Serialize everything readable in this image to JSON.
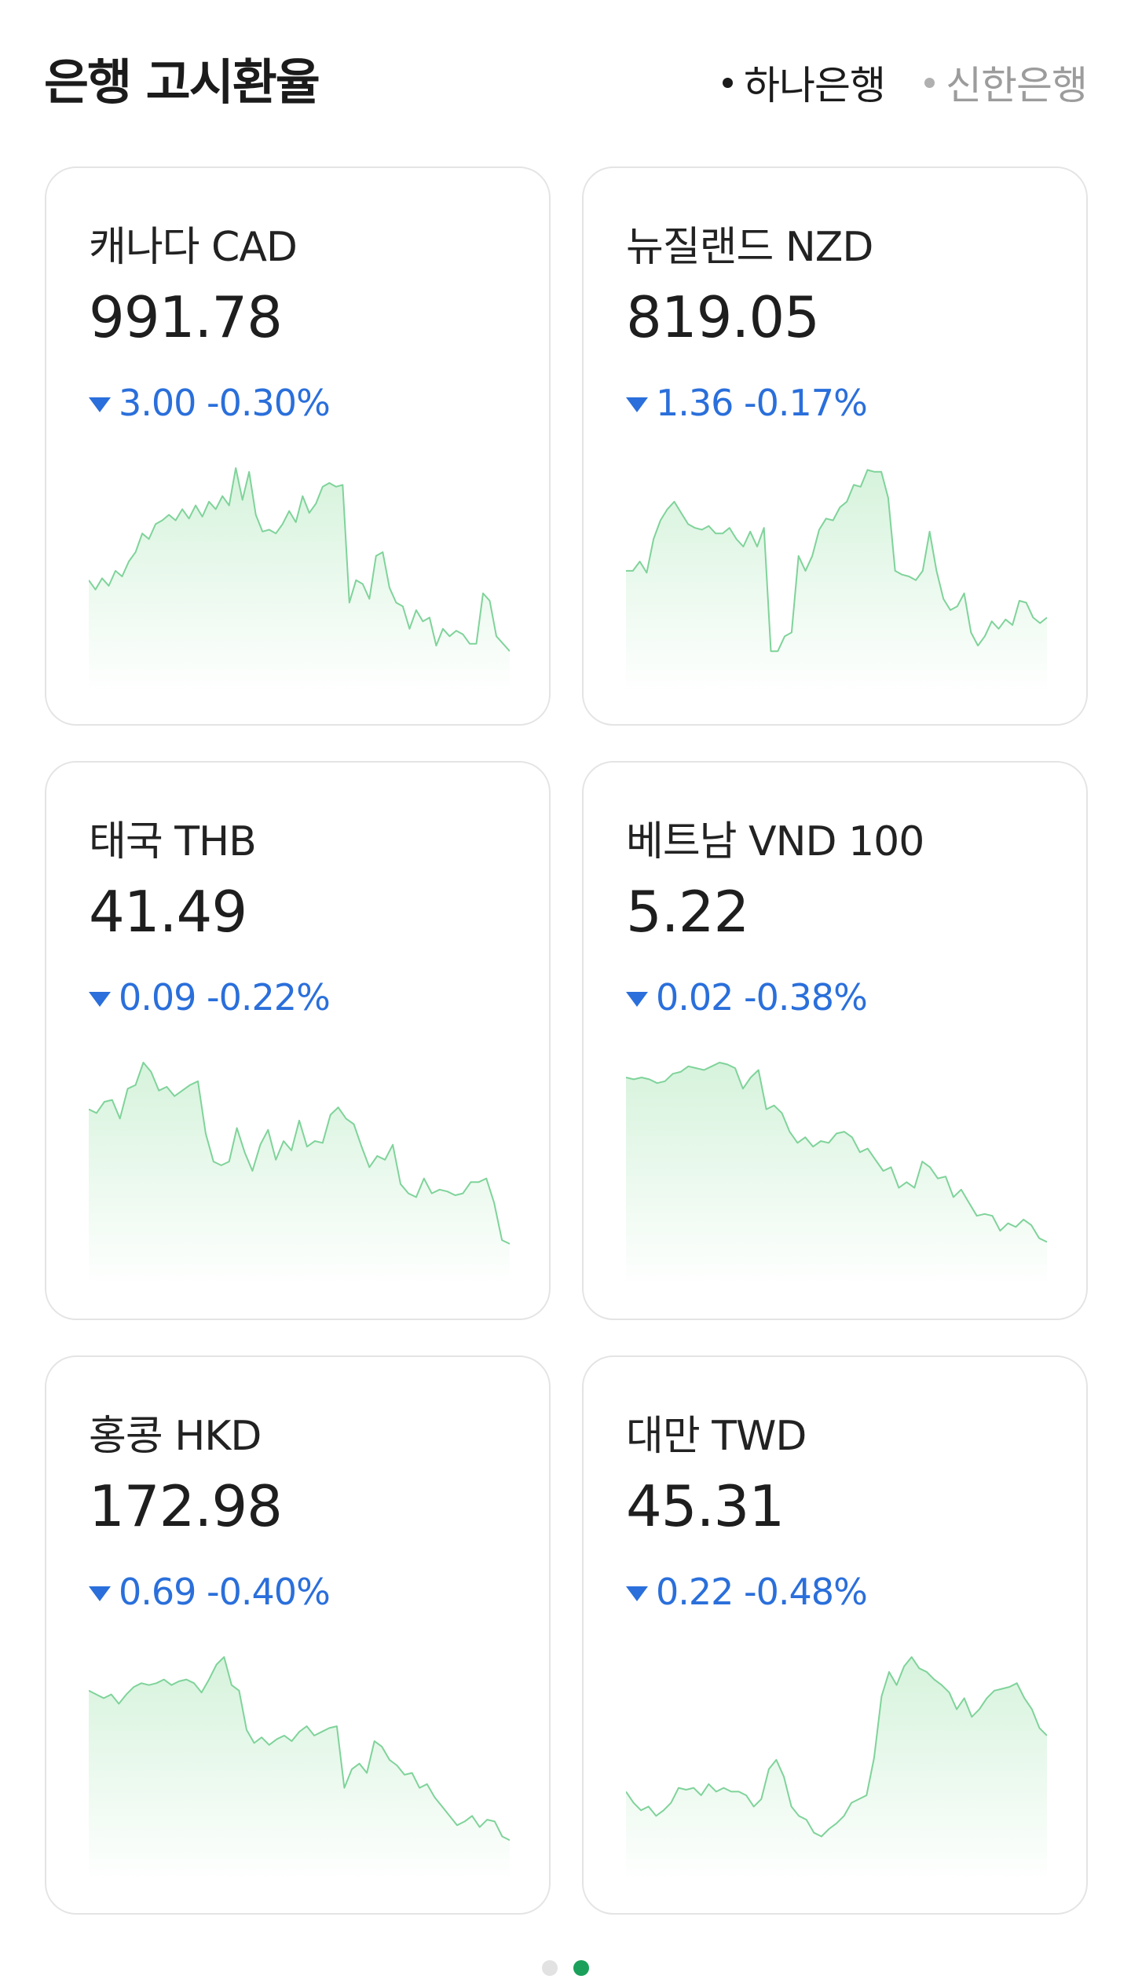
{
  "title": "은행 고시환율",
  "banks": [
    {
      "label": "하나은행",
      "active": true
    },
    {
      "label": "신한은행",
      "active": false
    }
  ],
  "colors": {
    "down": "#2a6fdb",
    "line": "#7fd39a",
    "fill_top": "#d6f3dc",
    "pager_active": "#1aa05a"
  },
  "cards": [
    {
      "name": "캐나다 CAD",
      "rate": "991.78",
      "change": "3.00 -0.30%",
      "direction": "down",
      "series": [
        0.4,
        0.35,
        0.41,
        0.37,
        0.45,
        0.42,
        0.5,
        0.55,
        0.65,
        0.62,
        0.7,
        0.72,
        0.75,
        0.72,
        0.78,
        0.73,
        0.8,
        0.74,
        0.82,
        0.78,
        0.85,
        0.8,
        1.0,
        0.83,
        0.98,
        0.75,
        0.66,
        0.67,
        0.65,
        0.7,
        0.77,
        0.71,
        0.85,
        0.76,
        0.81,
        0.9,
        0.92,
        0.9,
        0.91,
        0.28,
        0.4,
        0.38,
        0.3,
        0.53,
        0.55,
        0.36,
        0.28,
        0.26,
        0.14,
        0.24,
        0.18,
        0.2,
        0.05,
        0.14,
        0.1,
        0.13,
        0.11,
        0.06,
        0.06,
        0.33,
        0.29,
        0.1,
        0.06,
        0.02
      ]
    },
    {
      "name": "뉴질랜드 NZD",
      "rate": "819.05",
      "change": "1.36 -0.17%",
      "direction": "down",
      "series": [
        0.45,
        0.45,
        0.5,
        0.44,
        0.62,
        0.72,
        0.78,
        0.82,
        0.76,
        0.7,
        0.68,
        0.67,
        0.69,
        0.65,
        0.65,
        0.68,
        0.62,
        0.58,
        0.66,
        0.58,
        0.68,
        0.02,
        0.02,
        0.1,
        0.12,
        0.53,
        0.45,
        0.53,
        0.67,
        0.73,
        0.72,
        0.79,
        0.82,
        0.91,
        0.9,
        0.99,
        0.98,
        0.98,
        0.84,
        0.45,
        0.43,
        0.42,
        0.4,
        0.45,
        0.66,
        0.45,
        0.3,
        0.24,
        0.26,
        0.33,
        0.12,
        0.05,
        0.1,
        0.18,
        0.14,
        0.19,
        0.16,
        0.29,
        0.28,
        0.2,
        0.17,
        0.2
      ]
    },
    {
      "name": "태국 THB",
      "rate": "41.49",
      "change": "0.09 -0.22%",
      "direction": "down",
      "series": [
        0.75,
        0.73,
        0.79,
        0.8,
        0.7,
        0.86,
        0.88,
        1.0,
        0.95,
        0.85,
        0.87,
        0.82,
        0.85,
        0.88,
        0.9,
        0.62,
        0.47,
        0.45,
        0.47,
        0.65,
        0.52,
        0.42,
        0.56,
        0.64,
        0.48,
        0.58,
        0.53,
        0.69,
        0.55,
        0.58,
        0.57,
        0.72,
        0.76,
        0.7,
        0.67,
        0.55,
        0.44,
        0.5,
        0.48,
        0.56,
        0.35,
        0.3,
        0.28,
        0.38,
        0.3,
        0.32,
        0.31,
        0.29,
        0.3,
        0.36,
        0.36,
        0.38,
        0.25,
        0.05,
        0.03
      ]
    },
    {
      "name": "베트남 VND 100",
      "rate": "5.22",
      "change": "0.02 -0.38%",
      "direction": "down",
      "series": [
        0.92,
        0.91,
        0.92,
        0.91,
        0.89,
        0.9,
        0.94,
        0.95,
        0.98,
        0.97,
        0.96,
        0.98,
        1.0,
        0.99,
        0.97,
        0.86,
        0.92,
        0.96,
        0.75,
        0.77,
        0.73,
        0.63,
        0.57,
        0.6,
        0.55,
        0.58,
        0.57,
        0.62,
        0.63,
        0.6,
        0.52,
        0.54,
        0.48,
        0.42,
        0.44,
        0.33,
        0.36,
        0.33,
        0.47,
        0.44,
        0.38,
        0.39,
        0.28,
        0.32,
        0.25,
        0.18,
        0.19,
        0.18,
        0.1,
        0.14,
        0.12,
        0.16,
        0.13,
        0.06,
        0.04
      ]
    },
    {
      "name": "홍콩 HKD",
      "rate": "172.98",
      "change": "0.69 -0.40%",
      "direction": "down",
      "series": [
        0.82,
        0.8,
        0.78,
        0.8,
        0.75,
        0.8,
        0.84,
        0.86,
        0.85,
        0.86,
        0.88,
        0.85,
        0.87,
        0.88,
        0.86,
        0.81,
        0.88,
        0.96,
        1.0,
        0.85,
        0.82,
        0.61,
        0.54,
        0.57,
        0.53,
        0.56,
        0.58,
        0.55,
        0.6,
        0.63,
        0.58,
        0.6,
        0.62,
        0.63,
        0.3,
        0.4,
        0.43,
        0.38,
        0.55,
        0.52,
        0.45,
        0.42,
        0.37,
        0.38,
        0.3,
        0.32,
        0.25,
        0.2,
        0.15,
        0.1,
        0.12,
        0.15,
        0.09,
        0.13,
        0.12,
        0.04,
        0.02
      ]
    },
    {
      "name": "대만 TWD",
      "rate": "45.31",
      "change": "0.22 -0.48%",
      "direction": "down",
      "series": [
        0.28,
        0.22,
        0.18,
        0.2,
        0.15,
        0.18,
        0.22,
        0.3,
        0.29,
        0.3,
        0.26,
        0.32,
        0.28,
        0.3,
        0.28,
        0.28,
        0.26,
        0.2,
        0.24,
        0.4,
        0.45,
        0.36,
        0.2,
        0.15,
        0.13,
        0.06,
        0.04,
        0.08,
        0.11,
        0.15,
        0.22,
        0.24,
        0.26,
        0.46,
        0.79,
        0.92,
        0.85,
        0.95,
        1.0,
        0.94,
        0.92,
        0.88,
        0.85,
        0.81,
        0.72,
        0.78,
        0.68,
        0.72,
        0.78,
        0.82,
        0.83,
        0.84,
        0.86,
        0.78,
        0.72,
        0.62,
        0.58
      ]
    }
  ],
  "pager": {
    "count": 2,
    "active_index": 1
  }
}
